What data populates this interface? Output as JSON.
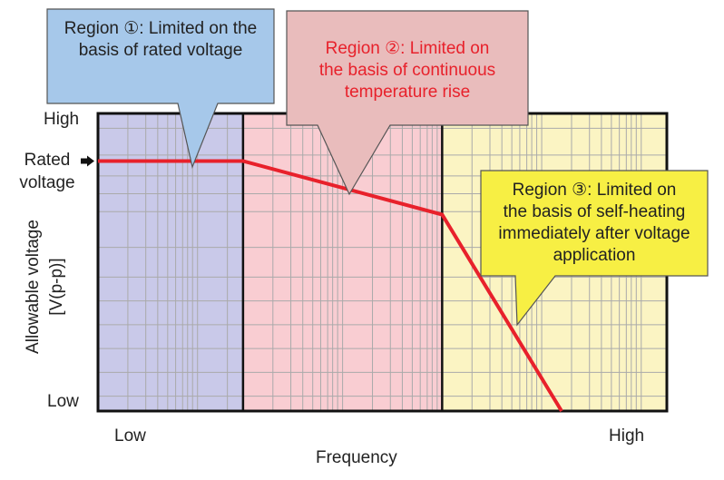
{
  "chart_data": {
    "type": "line",
    "title": "",
    "xlabel": "Frequency",
    "ylabel": "Allowable voltage\n[V(p-p)]",
    "x_tick_labels": [
      "Low",
      "High"
    ],
    "y_tick_labels": [
      "High",
      "Low"
    ],
    "rated_label": "Rated\nvoltage",
    "xlim": [
      0,
      1
    ],
    "ylim": [
      0,
      1
    ],
    "grid": true,
    "series": [
      {
        "color": "#e8212b",
        "points": [
          {
            "x": 0.0,
            "y": 0.84
          },
          {
            "x": 0.255,
            "y": 0.84
          },
          {
            "x": 0.605,
            "y": 0.66
          },
          {
            "x": 0.815,
            "y": 0.0
          }
        ]
      }
    ],
    "regions": [
      {
        "x_range": [
          0.0,
          0.255
        ],
        "fill": "#c9c9e9",
        "label": "Region ①: Limited on the\nbasis of rated voltage",
        "callout_fill": "#a6c8ea",
        "text_color": "#222222"
      },
      {
        "x_range": [
          0.255,
          0.605
        ],
        "fill": "#f9cdd2",
        "label": "Region ②: Limited on\nthe basis of continuous\ntemperature rise",
        "callout_fill": "#e9bcbc",
        "text_color": "#e8212b"
      },
      {
        "x_range": [
          0.605,
          1.0
        ],
        "fill": "#fbf4c3",
        "label": "Region ③: Limited on\nthe basis of self-heating\nimmediately after voltage\napplication",
        "callout_fill": "#f7ef44",
        "text_color": "#222222"
      }
    ]
  },
  "colors": {
    "axis": "#111111",
    "grid": "#aaaaaa",
    "arrow": "#111111"
  }
}
